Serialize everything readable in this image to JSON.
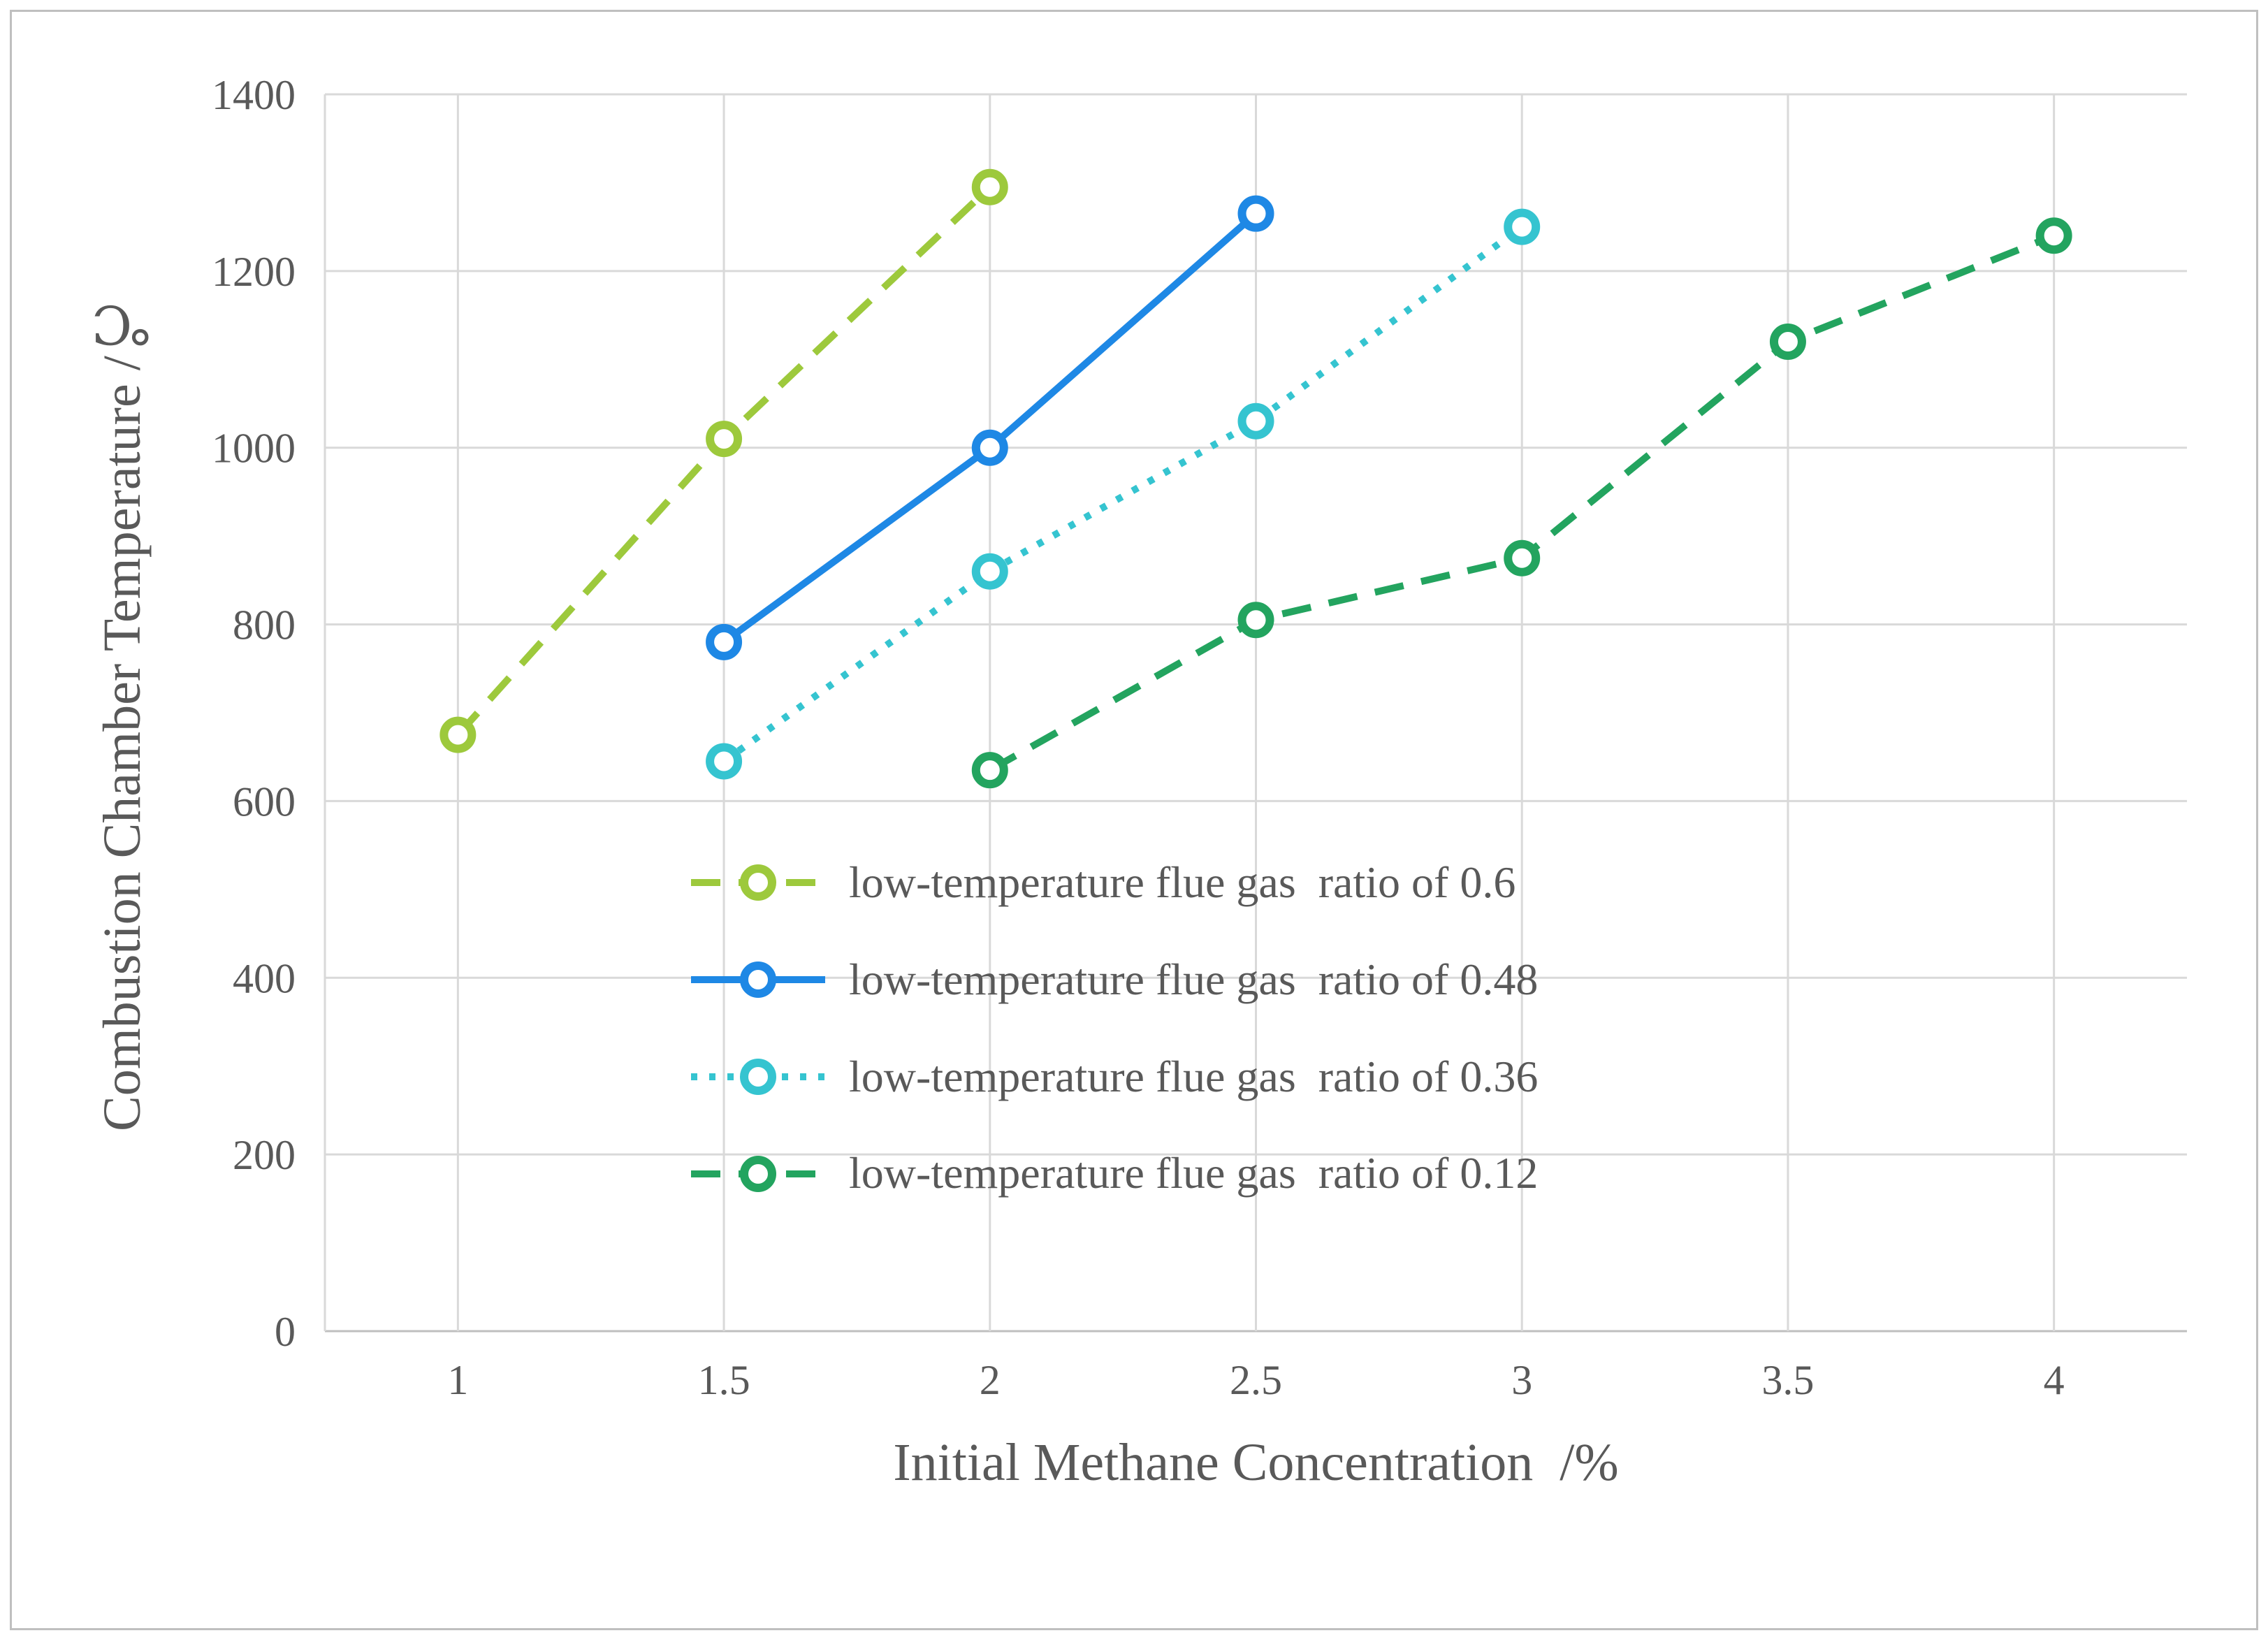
{
  "figure": {
    "background": "#FFFFFF",
    "border_color": "#BFBFBF"
  },
  "styles": {
    "text_color": "#595959",
    "grid_color": "#D9D9D9",
    "axis_color": "#BFBFBF",
    "marker_fill": "#FFFFFF"
  },
  "chart_data": {
    "type": "line",
    "title": "",
    "xlabel": "Initial Methane Concentration  /%",
    "ylabel": "Combustion Chamber Temperature /℃",
    "xlim": [
      0.75,
      4.25
    ],
    "ylim": [
      0,
      1400
    ],
    "x_ticks": [
      1,
      1.5,
      2,
      2.5,
      3,
      3.5,
      4
    ],
    "x_tick_labels": [
      "1",
      "1.5",
      "2",
      "2.5",
      "3",
      "3.5",
      "4"
    ],
    "y_ticks": [
      0,
      200,
      400,
      600,
      800,
      1000,
      1200,
      1400
    ],
    "grid": true,
    "legend_position": "inside-lower-center",
    "marker": "open-circle",
    "series": [
      {
        "name": "low-temperature flue gas  ratio of 0.6",
        "color": "#9DC93C",
        "line_style": "dashed",
        "points": [
          [
            1,
            675
          ],
          [
            1.5,
            1010
          ],
          [
            2,
            1295
          ]
        ]
      },
      {
        "name": "low-temperature flue gas  ratio of 0.48",
        "color": "#1E88E5",
        "line_style": "solid",
        "points": [
          [
            1.5,
            780
          ],
          [
            2,
            1000
          ],
          [
            2.5,
            1265
          ]
        ]
      },
      {
        "name": "low-temperature flue gas  ratio of 0.36",
        "color": "#35C4D0",
        "line_style": "dotted",
        "points": [
          [
            1.5,
            645
          ],
          [
            2,
            860
          ],
          [
            2.5,
            1030
          ],
          [
            3,
            1250
          ]
        ]
      },
      {
        "name": "low-temperature flue gas  ratio of 0.12",
        "color": "#23A45F",
        "line_style": "dashed",
        "points": [
          [
            2,
            635
          ],
          [
            2.5,
            805
          ],
          [
            3,
            875
          ],
          [
            3.5,
            1120
          ],
          [
            4,
            1240
          ]
        ]
      }
    ]
  }
}
